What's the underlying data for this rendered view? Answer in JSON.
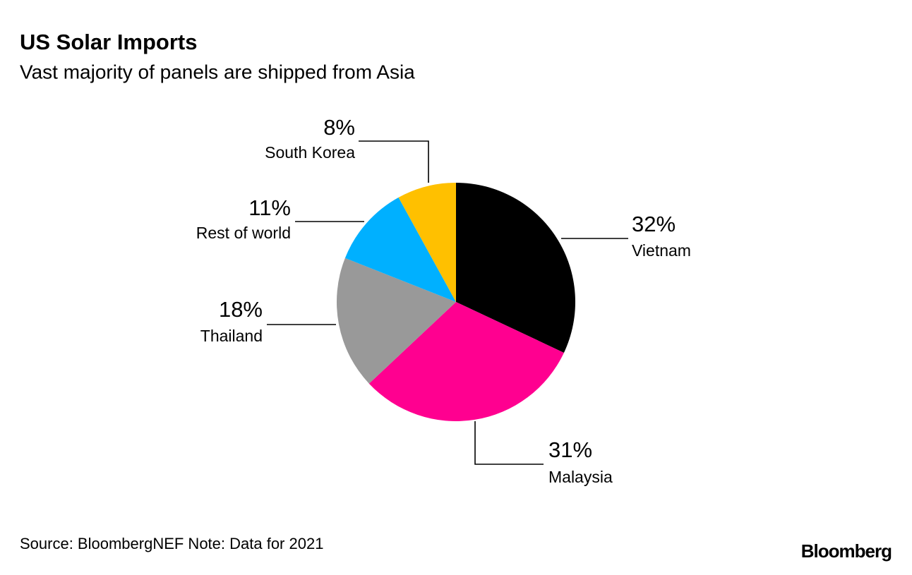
{
  "chart_data": {
    "type": "pie",
    "title": "US Solar Imports",
    "subtitle": "Vast majority of panels are shipped from Asia",
    "categories": [
      "Vietnam",
      "Malaysia",
      "Thailand",
      "Rest of world",
      "South Korea"
    ],
    "values": [
      32,
      31,
      18,
      11,
      8
    ],
    "value_labels": [
      "32%",
      "31%",
      "18%",
      "11%",
      "8%"
    ],
    "colors": [
      "#000000",
      "#ff0090",
      "#999999",
      "#00b0ff",
      "#ffc000"
    ],
    "source": "Source: BloombergNEF Note: Data for 2021",
    "brand": "Bloomberg"
  }
}
